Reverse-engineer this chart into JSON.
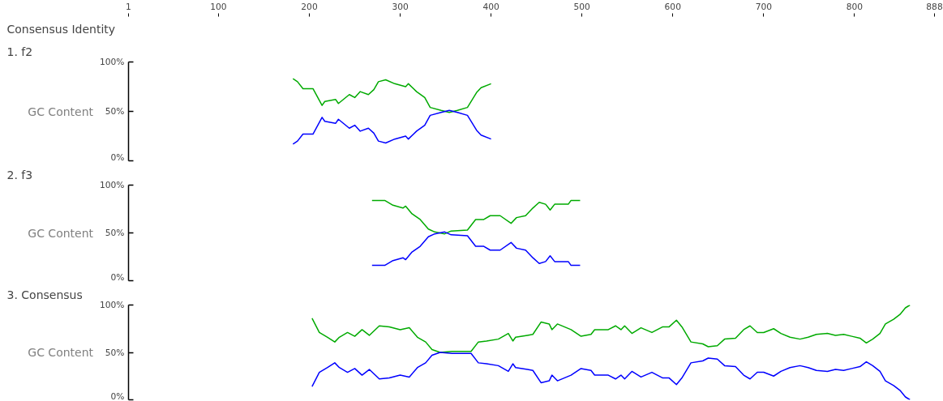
{
  "chart_data": [
    {
      "type": "line",
      "title": "1. f2",
      "ylabel": "GC Content",
      "annotations": [
        "Consensus Identity"
      ],
      "xlim": [
        1,
        888
      ],
      "xticks": [
        1,
        100,
        200,
        300,
        400,
        500,
        600,
        700,
        800,
        888
      ],
      "ylim": [
        0,
        100
      ],
      "yticks": [
        {
          "value": 0,
          "label": "0%"
        },
        {
          "value": 50,
          "label": "50%"
        },
        {
          "value": 100,
          "label": "100%"
        }
      ],
      "grid": false,
      "x": [
        182,
        187,
        193,
        204,
        214,
        217,
        229,
        232,
        244,
        250,
        256,
        265,
        271,
        276,
        284,
        294,
        306,
        309,
        318,
        327,
        333,
        345,
        354,
        363,
        374,
        384,
        389,
        400
      ],
      "series": [
        {
          "color": "#00aa00",
          "values": [
            83,
            80,
            73,
            73,
            56,
            60,
            62,
            58,
            67,
            64,
            70,
            67,
            72,
            80,
            82,
            78,
            75,
            78,
            70,
            64,
            54,
            51,
            49,
            51,
            54,
            69,
            74,
            78
          ]
        },
        {
          "color": "#0000ff",
          "values": [
            17,
            20,
            27,
            27,
            44,
            40,
            38,
            42,
            33,
            36,
            30,
            33,
            28,
            20,
            18,
            22,
            25,
            22,
            30,
            36,
            46,
            49,
            51,
            49,
            46,
            31,
            26,
            22
          ]
        }
      ]
    },
    {
      "type": "line",
      "title": "2. f3",
      "ylabel": "GC Content",
      "xlim": [
        1,
        888
      ],
      "tick_labels": "y",
      "ylim": [
        0,
        100
      ],
      "yticks": [
        {
          "value": 0,
          "label": "0%"
        },
        {
          "value": 50,
          "label": "50%"
        },
        {
          "value": 100,
          "label": "100%"
        }
      ],
      "grid": false,
      "x": [
        269,
        283,
        292,
        303,
        306,
        313,
        322,
        331,
        338,
        349,
        356,
        374,
        383,
        392,
        399,
        410,
        422,
        428,
        438,
        446,
        453,
        460,
        465,
        470,
        485,
        488,
        498
      ],
      "series": [
        {
          "color": "#00aa00",
          "values": [
            84,
            84,
            79,
            76,
            78,
            70,
            64,
            54,
            51,
            49,
            52,
            53,
            64,
            64,
            68,
            68,
            60,
            66,
            68,
            76,
            82,
            80,
            74,
            80,
            80,
            84,
            84
          ]
        },
        {
          "color": "#0000ff",
          "values": [
            16,
            16,
            21,
            24,
            22,
            30,
            36,
            46,
            49,
            51,
            48,
            47,
            36,
            36,
            32,
            32,
            40,
            34,
            32,
            24,
            18,
            20,
            26,
            20,
            20,
            16,
            16
          ]
        }
      ]
    },
    {
      "type": "line",
      "title": "3. Consensus",
      "ylabel": "GC Content",
      "xlim": [
        1,
        888
      ],
      "tick_labels": "y",
      "ylim": [
        0,
        100
      ],
      "yticks": [
        {
          "value": 0,
          "label": "0%"
        },
        {
          "value": 50,
          "label": "50%"
        },
        {
          "value": 100,
          "label": "100%"
        }
      ],
      "grid": false,
      "x": [
        203,
        211,
        220,
        228,
        233,
        242,
        250,
        258,
        266,
        277,
        288,
        300,
        310,
        319,
        328,
        335,
        344,
        357,
        378,
        386,
        395,
        408,
        419,
        424,
        427,
        440,
        446,
        455,
        464,
        467,
        473,
        488,
        499,
        510,
        514,
        529,
        537,
        543,
        547,
        555,
        565,
        577,
        589,
        596,
        604,
        610,
        620,
        633,
        639,
        649,
        657,
        669,
        678,
        685,
        693,
        700,
        711,
        719,
        729,
        740,
        749,
        758,
        770,
        779,
        788,
        797,
        806,
        813,
        820,
        828,
        834,
        843,
        850,
        856,
        861
      ],
      "series": [
        {
          "color": "#00aa00",
          "values": [
            86,
            71,
            66,
            61,
            66,
            71,
            67,
            74,
            68,
            78,
            77,
            74,
            76,
            66,
            61,
            53,
            50,
            51,
            51,
            61,
            62,
            64,
            70,
            62,
            66,
            68,
            69,
            82,
            80,
            74,
            80,
            74,
            67,
            69,
            74,
            74,
            78,
            74,
            78,
            70,
            76,
            71,
            77,
            77,
            84,
            77,
            61,
            59,
            56,
            57,
            64,
            65,
            74,
            78,
            71,
            71,
            75,
            70,
            66,
            64,
            66,
            69,
            70,
            68,
            69,
            67,
            65,
            60,
            64,
            70,
            80,
            85,
            90,
            97,
            100
          ]
        },
        {
          "color": "#0000ff",
          "values": [
            14,
            29,
            34,
            39,
            34,
            29,
            33,
            26,
            32,
            22,
            23,
            26,
            24,
            34,
            39,
            47,
            50,
            49,
            49,
            39,
            38,
            36,
            30,
            38,
            34,
            32,
            31,
            18,
            20,
            26,
            20,
            26,
            33,
            31,
            26,
            26,
            22,
            26,
            22,
            30,
            24,
            29,
            23,
            23,
            16,
            23,
            39,
            41,
            44,
            43,
            36,
            35,
            26,
            22,
            29,
            29,
            25,
            30,
            34,
            36,
            34,
            31,
            30,
            32,
            31,
            33,
            35,
            40,
            36,
            30,
            20,
            15,
            10,
            3,
            0
          ]
        }
      ]
    }
  ]
}
